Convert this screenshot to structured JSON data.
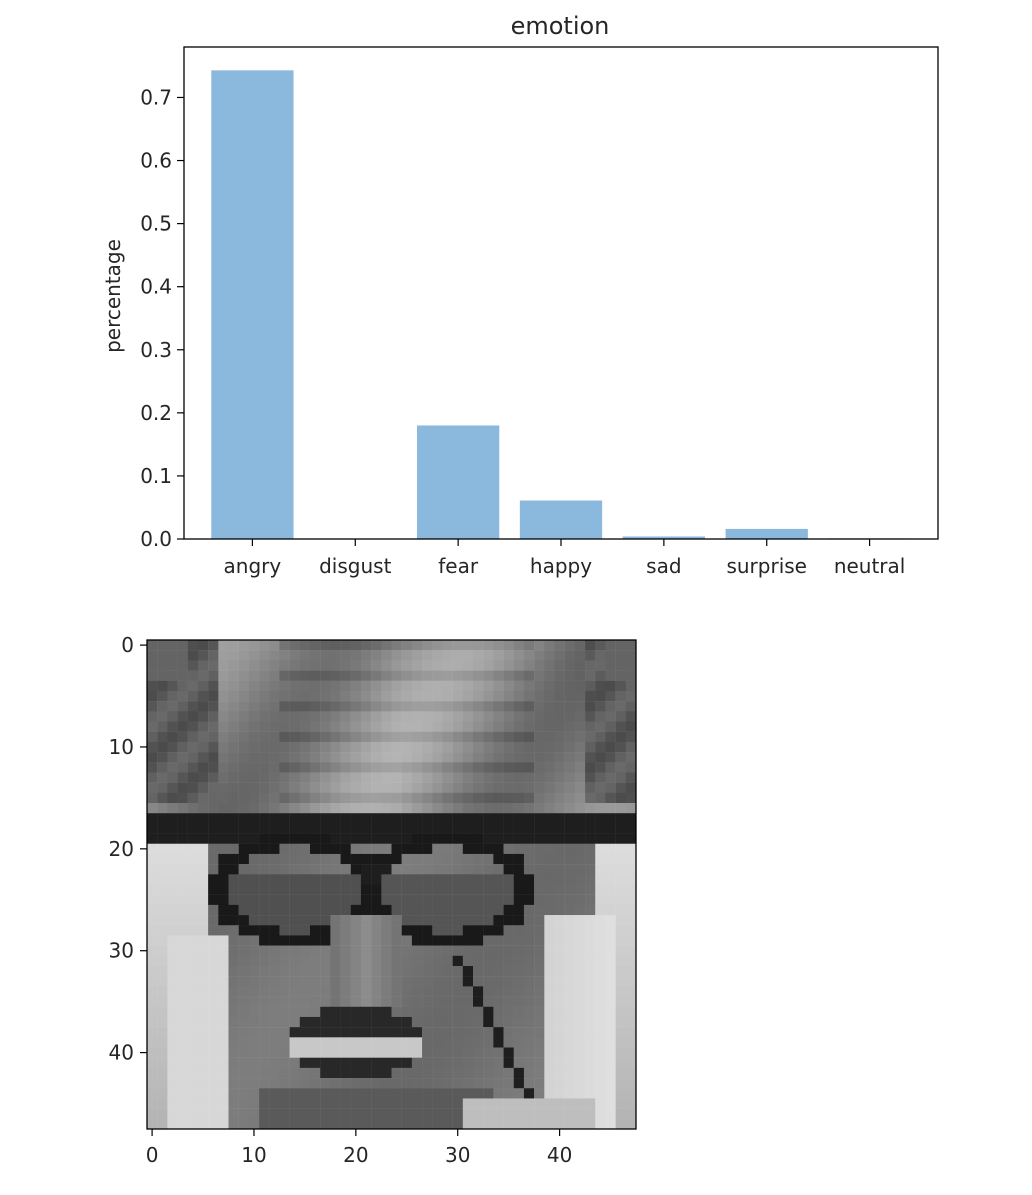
{
  "chart_data": [
    {
      "type": "bar",
      "title": "emotion",
      "xlabel": "",
      "ylabel": "percentage",
      "categories": [
        "angry",
        "disgust",
        "fear",
        "happy",
        "sad",
        "surprise",
        "neutral"
      ],
      "values": [
        0.743,
        0.0,
        0.18,
        0.061,
        0.004,
        0.016,
        0.001
      ],
      "yticks": [
        0.0,
        0.1,
        0.2,
        0.3,
        0.4,
        0.5,
        0.6,
        0.7
      ],
      "ylim": [
        0,
        0.78
      ],
      "bar_color": "#8bb9dd",
      "grid": false
    },
    {
      "type": "heatmap",
      "title": "",
      "colormap": "gray",
      "xticks": [
        0,
        10,
        20,
        30,
        40
      ],
      "yticks": [
        0,
        10,
        20,
        30,
        40
      ],
      "xlim": [
        -0.5,
        47.5
      ],
      "ylim": [
        47.5,
        -0.5
      ],
      "grid_size": [
        48,
        48
      ]
    }
  ]
}
